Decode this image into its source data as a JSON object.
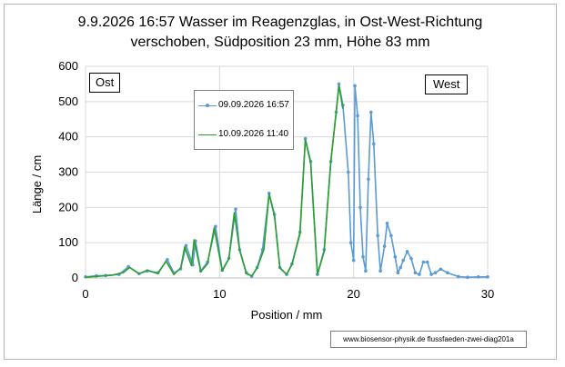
{
  "chart_data": {
    "type": "line",
    "title_line1": "9.9.2026 16:57 Wasser im Reagenzglas, in Ost-West-Richtung",
    "title_line2": "verschoben, Südposition 23 mm, Höhe 83 mm",
    "xlabel": "Position / mm",
    "ylabel": "Länge / cm",
    "xlim": [
      0,
      30
    ],
    "ylim": [
      0,
      600
    ],
    "xticks": [
      0,
      10,
      20,
      30
    ],
    "yticks": [
      0,
      100,
      200,
      300,
      400,
      500,
      600
    ],
    "grid": true,
    "legend_placement": "upper-center",
    "annotations": {
      "east": "Ost",
      "west": "West"
    },
    "source_note": "www.biosensor-physik.de  flussfaeden-zwei-diag201a",
    "series": [
      {
        "name": "09.09.2026 16:57",
        "color": "#5b9bd5",
        "markers": true,
        "points": [
          [
            0,
            3
          ],
          [
            0.8,
            6
          ],
          [
            1.5,
            7
          ],
          [
            2.5,
            10
          ],
          [
            3.2,
            32
          ],
          [
            4,
            12
          ],
          [
            4.6,
            20
          ],
          [
            5.4,
            15
          ],
          [
            6.1,
            52
          ],
          [
            6.6,
            14
          ],
          [
            7.1,
            26
          ],
          [
            7.5,
            92
          ],
          [
            8,
            37
          ],
          [
            8.2,
            105
          ],
          [
            8.6,
            20
          ],
          [
            9.1,
            45
          ],
          [
            9.7,
            146
          ],
          [
            10.2,
            22
          ],
          [
            10.7,
            56
          ],
          [
            11.2,
            195
          ],
          [
            11.5,
            80
          ],
          [
            12,
            15
          ],
          [
            12.4,
            5
          ],
          [
            12.8,
            30
          ],
          [
            13.2,
            80
          ],
          [
            13.7,
            240
          ],
          [
            14.1,
            180
          ],
          [
            14.5,
            30
          ],
          [
            15,
            10
          ],
          [
            15.4,
            40
          ],
          [
            16,
            130
          ],
          [
            16.4,
            395
          ],
          [
            16.8,
            330
          ],
          [
            17.3,
            10
          ],
          [
            17.8,
            80
          ],
          [
            18.3,
            330
          ],
          [
            18.7,
            470
          ],
          [
            18.9,
            550
          ],
          [
            19.2,
            490
          ],
          [
            19.6,
            300
          ],
          [
            19.8,
            100
          ],
          [
            20,
            50
          ],
          [
            20.1,
            545
          ],
          [
            20.3,
            460
          ],
          [
            20.5,
            200
          ],
          [
            20.7,
            60
          ],
          [
            20.9,
            20
          ],
          [
            21.1,
            280
          ],
          [
            21.3,
            470
          ],
          [
            21.5,
            380
          ],
          [
            21.8,
            120
          ],
          [
            22,
            20
          ],
          [
            22.3,
            90
          ],
          [
            22.5,
            155
          ],
          [
            22.8,
            120
          ],
          [
            23.1,
            60
          ],
          [
            23.3,
            15
          ],
          [
            23.5,
            30
          ],
          [
            23.7,
            50
          ],
          [
            24,
            75
          ],
          [
            24.3,
            55
          ],
          [
            24.6,
            15
          ],
          [
            24.9,
            10
          ],
          [
            25.2,
            45
          ],
          [
            25.5,
            45
          ],
          [
            25.8,
            10
          ],
          [
            26.1,
            15
          ],
          [
            26.5,
            25
          ],
          [
            27,
            15
          ],
          [
            27.8,
            4
          ],
          [
            28.5,
            2
          ],
          [
            29.3,
            3
          ],
          [
            30,
            3
          ]
        ]
      },
      {
        "name": "10.09.2026 11:40",
        "color": "#2ca02c",
        "markers": false,
        "points": [
          [
            0,
            2
          ],
          [
            1,
            5
          ],
          [
            2,
            8
          ],
          [
            2.8,
            15
          ],
          [
            3.3,
            30
          ],
          [
            4,
            12
          ],
          [
            4.6,
            22
          ],
          [
            5.4,
            12
          ],
          [
            6,
            48
          ],
          [
            6.6,
            10
          ],
          [
            7.1,
            28
          ],
          [
            7.4,
            88
          ],
          [
            7.9,
            35
          ],
          [
            8.1,
            108
          ],
          [
            8.6,
            18
          ],
          [
            9.1,
            40
          ],
          [
            9.6,
            142
          ],
          [
            10.2,
            20
          ],
          [
            10.7,
            55
          ],
          [
            11.1,
            185
          ],
          [
            11.5,
            78
          ],
          [
            12,
            12
          ],
          [
            12.4,
            6
          ],
          [
            12.8,
            28
          ],
          [
            13.3,
            80
          ],
          [
            13.7,
            238
          ],
          [
            14.1,
            175
          ],
          [
            14.5,
            28
          ],
          [
            15,
            10
          ],
          [
            15.4,
            38
          ],
          [
            16,
            125
          ],
          [
            16.4,
            392
          ],
          [
            16.8,
            325
          ],
          [
            17.3,
            10
          ],
          [
            17.8,
            75
          ],
          [
            18.3,
            330
          ],
          [
            18.7,
            470
          ],
          [
            18.9,
            545
          ],
          [
            19.2,
            480
          ]
        ]
      }
    ]
  }
}
